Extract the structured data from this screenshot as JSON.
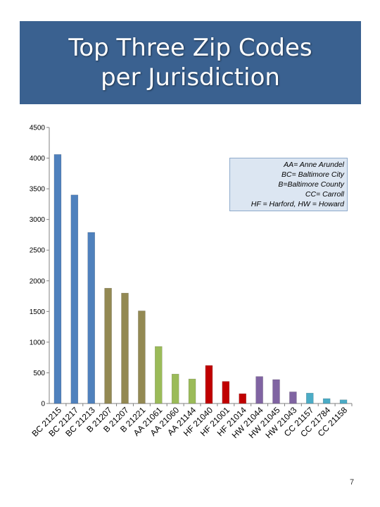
{
  "title": "Top Three Zip Codes\nper Jurisdiction",
  "legend_lines": [
    "AA= Anne Arundel",
    "BC= Baltimore City",
    "B=Baltimore County",
    "CC= Carroll",
    "HF = Harford, HW = Howard"
  ],
  "page_number": "7",
  "colors": {
    "banner": "#3a6190",
    "BC": "#4f81bd",
    "B": "#938953",
    "AA": "#9bbb59",
    "HF": "#c00000",
    "HW": "#8064a2",
    "CC": "#4bacc6"
  },
  "chart_data": {
    "type": "bar",
    "ylim": [
      0,
      4500
    ],
    "yticks": [
      0,
      500,
      1000,
      1500,
      2000,
      2500,
      3000,
      3500,
      4000,
      4500
    ],
    "grid": false,
    "categories": [
      "BC 21215",
      "BC 21217",
      "BC 21213",
      "B 21207",
      "B 21207",
      "B 21221",
      "AA 21061",
      "AA 21060",
      "AA 21144",
      "HF 21040",
      "HF 21001",
      "HF 21014",
      "HW 21044",
      "HW 21045",
      "HW 21043",
      "CC 21157",
      "CC 21784",
      "CC 21158"
    ],
    "groups": [
      "BC",
      "BC",
      "BC",
      "B",
      "B",
      "B",
      "AA",
      "AA",
      "AA",
      "HF",
      "HF",
      "HF",
      "HW",
      "HW",
      "HW",
      "CC",
      "CC",
      "CC"
    ],
    "values": [
      4060,
      3400,
      2790,
      1880,
      1800,
      1510,
      930,
      480,
      400,
      620,
      360,
      160,
      440,
      390,
      190,
      170,
      80,
      60
    ]
  }
}
